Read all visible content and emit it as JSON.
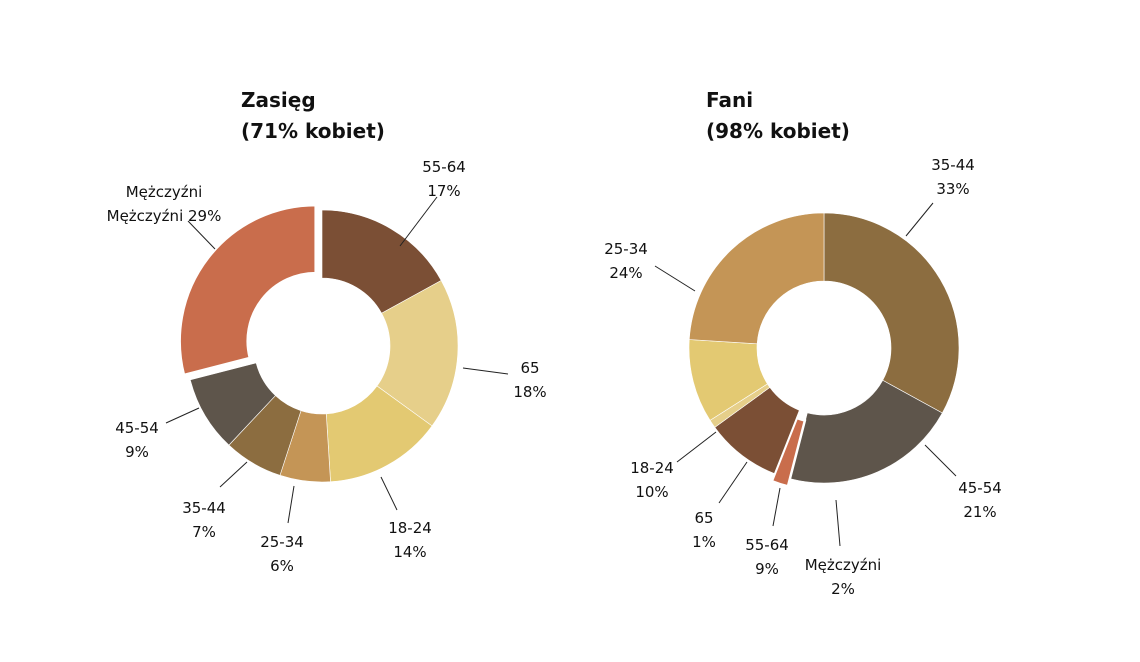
{
  "chart_data": [
    {
      "type": "pie",
      "title_line1": "Zasięg",
      "title_line2": "(71% kobiet)",
      "slices": [
        {
          "label": "55-64",
          "value_label": "17%",
          "value": 17,
          "color": "#7b4f35"
        },
        {
          "label": "65",
          "value_label": "18%",
          "value": 18,
          "color": "#e6cf8a"
        },
        {
          "label": "18-24",
          "value_label": "14%",
          "value": 14,
          "color": "#e3c972"
        },
        {
          "label": "25-34",
          "value_label": "6%",
          "value": 6,
          "color": "#c49556"
        },
        {
          "label": "35-44",
          "value_label": "7%",
          "value": 7,
          "color": "#8c6d40"
        },
        {
          "label": "45-54",
          "value_label": "9%",
          "value": 9,
          "color": "#5e554b"
        },
        {
          "label": "Mężczyźni",
          "value_label": "Mężczyźni 29%",
          "value": 29,
          "color": "#c96d4c",
          "exploded": true
        }
      ]
    },
    {
      "type": "pie",
      "title_line1": "Fani",
      "title_line2": "(98% kobiet)",
      "slices": [
        {
          "label": "35-44",
          "value_label": "33%",
          "value": 33,
          "color": "#8c6d40"
        },
        {
          "label": "45-54",
          "value_label": "21%",
          "value": 21,
          "color": "#5e554b"
        },
        {
          "label": "Mężczyźni",
          "value_label": "2%",
          "value": 2,
          "color": "#c96d4c",
          "exploded": true
        },
        {
          "label": "55-64",
          "value_label": "9%",
          "value": 9,
          "color": "#7b4f35"
        },
        {
          "label": "65",
          "value_label": "1%",
          "value": 1,
          "color": "#e6cf8a"
        },
        {
          "label": "18-24",
          "value_label": "10%",
          "value": 10,
          "color": "#e3c972"
        },
        {
          "label": "25-34",
          "value_label": "24%",
          "value": 24,
          "color": "#c49556"
        }
      ]
    }
  ]
}
